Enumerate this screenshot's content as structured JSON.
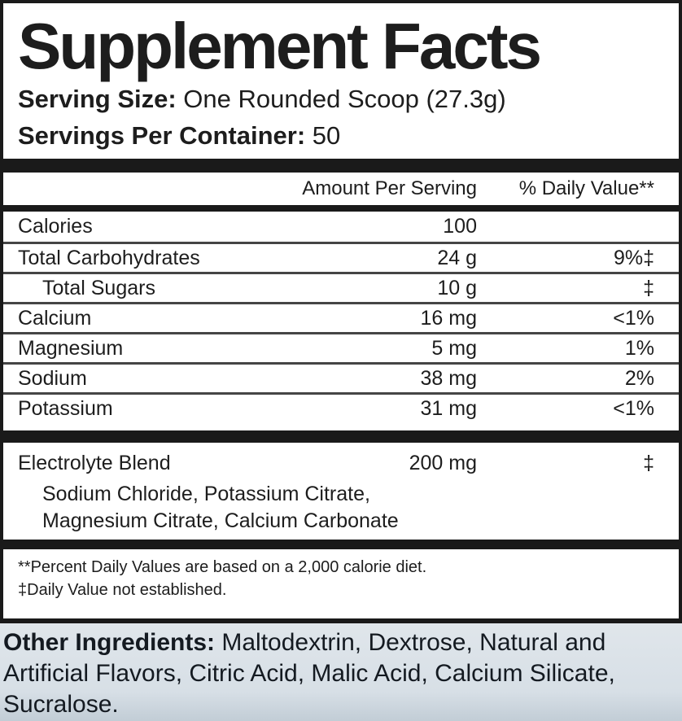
{
  "label": {
    "title": "Supplement Facts",
    "serving_size_label": "Serving Size:",
    "serving_size_value": " One Rounded Scoop (27.3g)",
    "servings_label": "Servings Per Container:",
    "servings_value": " 50",
    "columns": {
      "amount": "Amount Per Serving",
      "daily_value": "% Daily Value**"
    },
    "rows": [
      {
        "name": "Calories",
        "amount": "100",
        "dv": ""
      },
      {
        "name": "Total Carbohydrates",
        "amount": "24 g",
        "dv": "9%‡"
      },
      {
        "name": "Total Sugars",
        "amount": "10 g",
        "dv": "‡"
      },
      {
        "name": "Calcium",
        "amount": "16 mg",
        "dv": "<1%"
      },
      {
        "name": "Magnesium",
        "amount": "5 mg",
        "dv": "1%"
      },
      {
        "name": "Sodium",
        "amount": "38 mg",
        "dv": "2%"
      },
      {
        "name": "Potassium",
        "amount": "31 mg",
        "dv": "<1%"
      }
    ],
    "blend": {
      "name": "Electrolyte Blend",
      "amount": "200 mg",
      "dv": "‡",
      "components_line1": "Sodium Chloride, Potassium Citrate,",
      "components_line2": "Magnesium Citrate, Calcium Carbonate"
    },
    "footnotes": {
      "percent": "**Percent Daily Values are based on a 2,000 calorie diet.",
      "dagger": "‡Daily Value not established."
    },
    "other_ingredients": {
      "label": "Other Ingredients:",
      "text": " Maltodextrin, Dextrose, Natural and Artificial Flavors, Citric Acid, Malic Acid, Calcium Silicate, Sucralose."
    }
  },
  "colors": {
    "panel_border": "#1a1a1a",
    "text": "#1d1d1d",
    "row_rule": "#454545",
    "other_bg_top": "#e0e6eb",
    "other_bg_bottom": "#c2cdd6"
  }
}
